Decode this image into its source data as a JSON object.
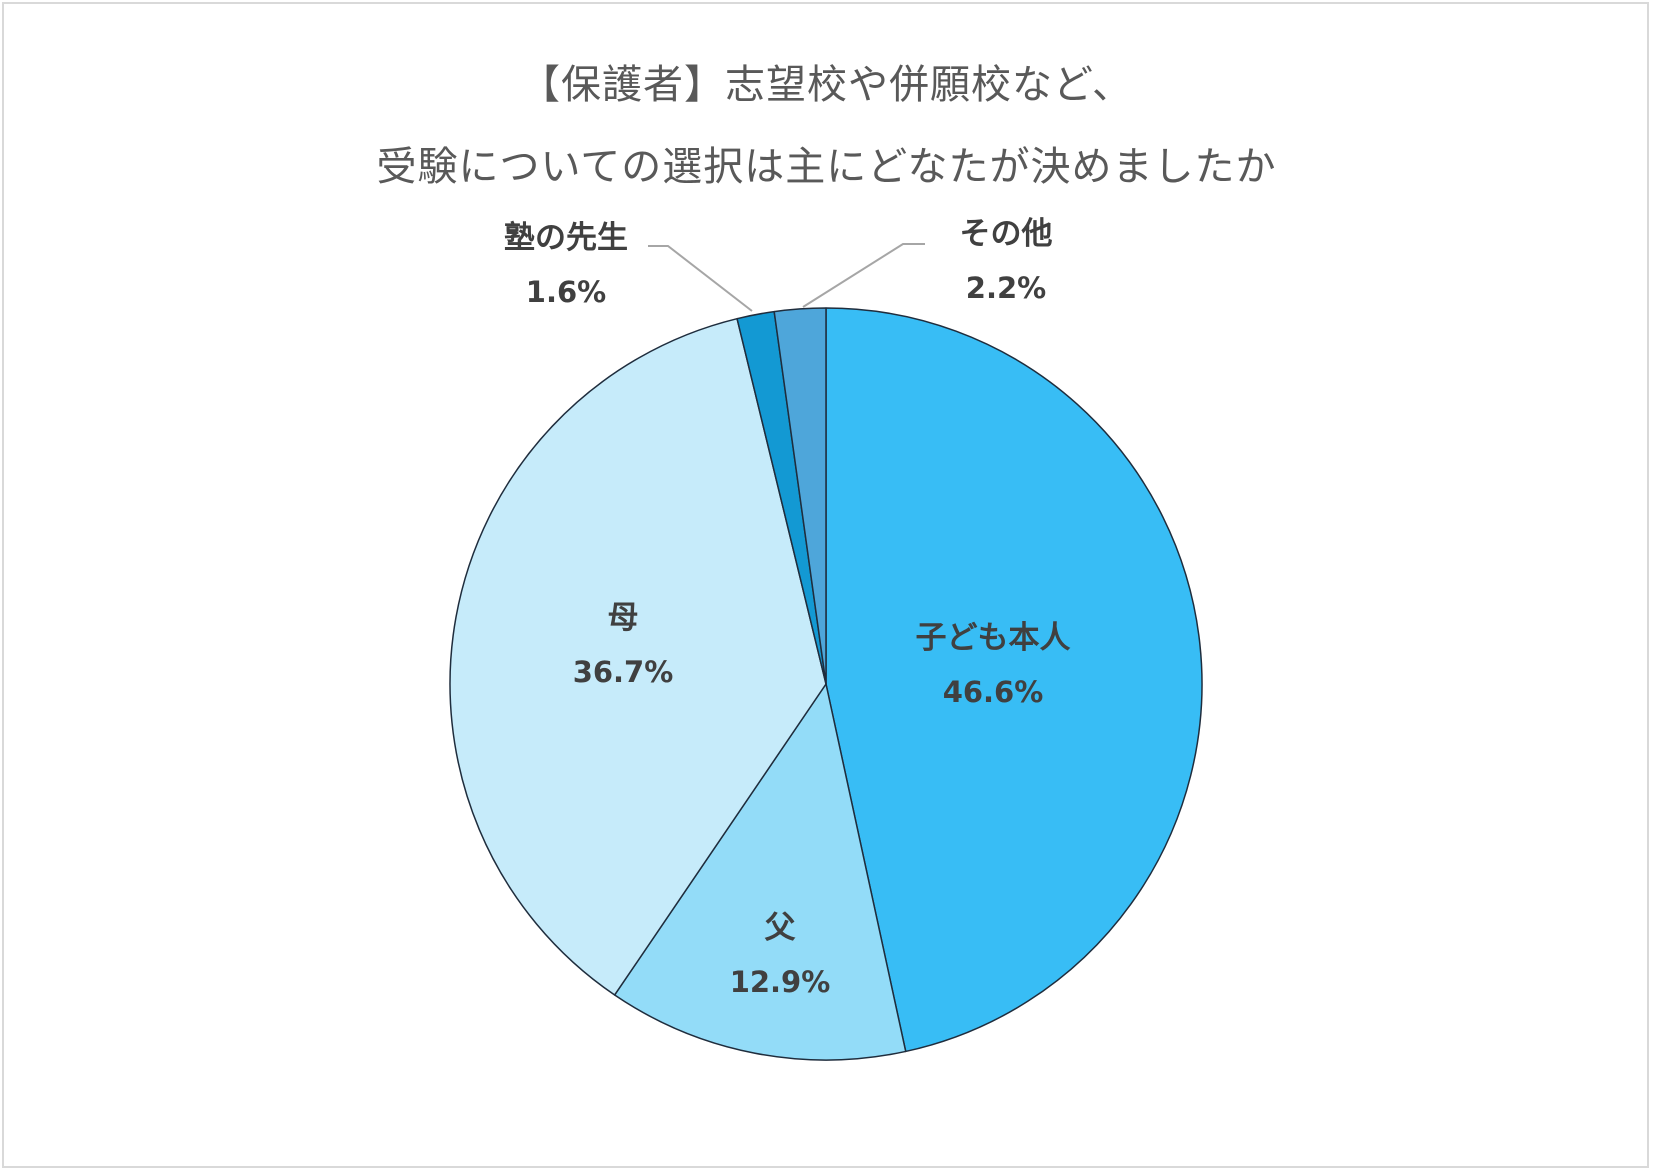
{
  "title": {
    "line1": "【保護者】志望校や併願校など、",
    "line2": "受験についての選択は主にどなたが決めましたか"
  },
  "chart_data": {
    "type": "pie",
    "start_angle_deg": 0,
    "direction": "clockwise",
    "slices": [
      {
        "label": "子ども本人",
        "value": 46.6,
        "value_text": "46.6%",
        "color": "#38bdf5"
      },
      {
        "label": "父",
        "value": 12.9,
        "value_text": "12.9%",
        "color": "#93dcf8"
      },
      {
        "label": "母",
        "value": 36.7,
        "value_text": "36.7%",
        "color": "#c6ebfa"
      },
      {
        "label": "塾の先生",
        "value": 1.6,
        "value_text": "1.6%",
        "color": "#1399d3"
      },
      {
        "label": "その他",
        "value": 2.2,
        "value_text": "2.2%",
        "color": "#4ea6da"
      }
    ],
    "slice_outline_color": "#1f2d3d",
    "leader_line_color": "#a6a6a6"
  }
}
